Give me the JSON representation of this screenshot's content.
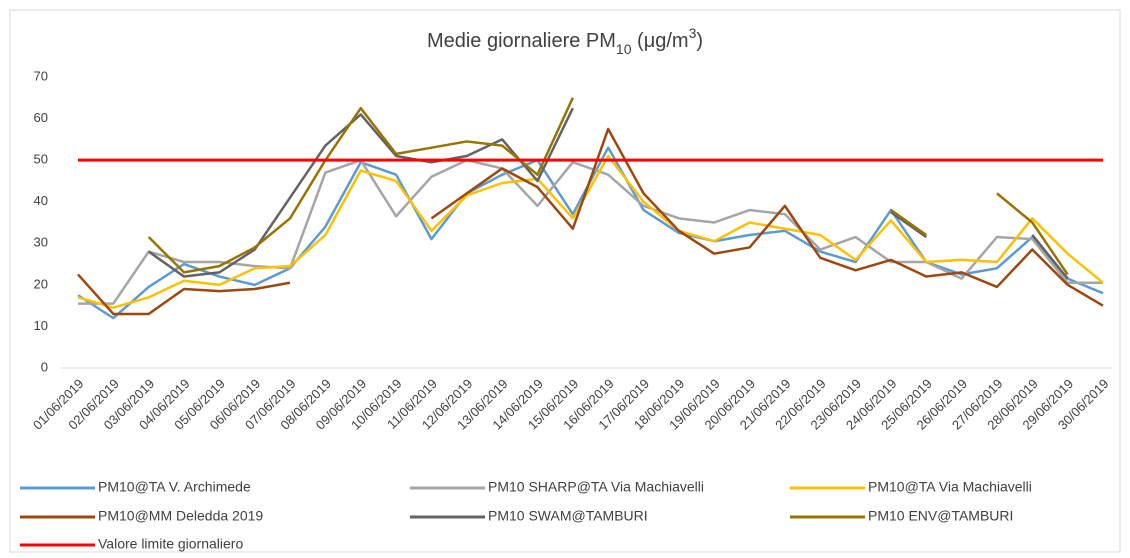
{
  "chart_data": {
    "type": "line",
    "title": [
      "Medie giornaliere PM",
      "10",
      " (μg/m",
      "3",
      ")"
    ],
    "categories": [
      "01/06/2019",
      "02/06/2019",
      "03/06/2019",
      "04/06/2019",
      "05/06/2019",
      "06/06/2019",
      "07/06/2019",
      "08/06/2019",
      "09/06/2019",
      "10/06/2019",
      "11/06/2019",
      "12/06/2019",
      "13/06/2019",
      "14/06/2019",
      "15/06/2019",
      "16/06/2019",
      "17/06/2019",
      "18/06/2019",
      "19/06/2019",
      "20/06/2019",
      "21/06/2019",
      "22/06/2019",
      "23/06/2019",
      "24/06/2019",
      "25/06/2019",
      "26/06/2019",
      "27/06/2019",
      "28/06/2019",
      "29/06/2019",
      "30/06/2019"
    ],
    "ylim": [
      0,
      70
    ],
    "yticks": [
      0,
      10,
      20,
      30,
      40,
      50,
      60,
      70
    ],
    "grid": false,
    "series": [
      {
        "name": "PM10@TA V. Archimede",
        "color": "#5b9bd5",
        "values": [
          17.5,
          12,
          19.5,
          25,
          22,
          20,
          24,
          34,
          49.5,
          46.5,
          31,
          42,
          46.5,
          50,
          37,
          53,
          38,
          32.5,
          30.5,
          32,
          33,
          28,
          25.5,
          38,
          25.5,
          22.5,
          24,
          31.5,
          21.5,
          18
        ]
      },
      {
        "name": "PM10 SHARP@TA Via Machiavelli",
        "color": "#a5a5a5",
        "values": [
          15.5,
          15.5,
          28,
          25.5,
          25.5,
          24.5,
          24,
          47,
          50,
          36.5,
          46,
          50,
          48,
          39,
          49.5,
          46.5,
          39,
          36,
          35,
          38,
          37,
          28.5,
          31.5,
          25.5,
          25.5,
          21.5,
          31.5,
          31,
          20.5,
          20.5
        ]
      },
      {
        "name": "PM10@TA Via Machiavelli",
        "color": "#ffc000",
        "values": [
          17,
          14.5,
          17,
          21,
          20,
          24,
          24.5,
          32,
          47.5,
          45,
          33,
          41.5,
          44.5,
          45.5,
          36,
          51,
          40,
          33,
          30.5,
          35,
          33.5,
          32,
          26,
          35.5,
          25.5,
          26,
          25.5,
          36,
          27.5,
          20.5
        ]
      },
      {
        "name": "PM10@MM Deledda 2019",
        "color": "#9e480e",
        "values": [
          22.5,
          13,
          13,
          19,
          18.5,
          19,
          20.5,
          null,
          null,
          null,
          36,
          42,
          48,
          43.5,
          33.5,
          57.5,
          42,
          33,
          27.5,
          29,
          39,
          26.5,
          23.5,
          26,
          22,
          23,
          19.5,
          28.5,
          20,
          15
        ]
      },
      {
        "name": "PM10 SWAM@TAMBURI",
        "color": "#636363",
        "values": [
          null,
          null,
          28,
          22,
          23,
          28.5,
          41,
          53.5,
          61,
          51,
          49.5,
          51,
          55,
          45,
          62.5,
          null,
          null,
          null,
          null,
          null,
          null,
          null,
          null,
          37.5,
          31.5,
          null,
          null,
          32,
          21.5,
          null
        ]
      },
      {
        "name": "PM10 ENV@TAMBURI",
        "color": "#997300",
        "values": [
          null,
          null,
          31.5,
          23,
          24.5,
          29,
          36,
          50,
          62.5,
          51.5,
          53,
          54.5,
          53.5,
          46.5,
          65,
          null,
          null,
          null,
          null,
          null,
          null,
          null,
          null,
          38,
          32,
          null,
          42,
          35,
          22.5,
          null
        ]
      },
      {
        "name": "Valore limite giornaliero",
        "color": "#ff0000",
        "values": [
          50,
          50,
          50,
          50,
          50,
          50,
          50,
          50,
          50,
          50,
          50,
          50,
          50,
          50,
          50,
          50,
          50,
          50,
          50,
          50,
          50,
          50,
          50,
          50,
          50,
          50,
          50,
          50,
          50,
          50
        ]
      }
    ]
  }
}
